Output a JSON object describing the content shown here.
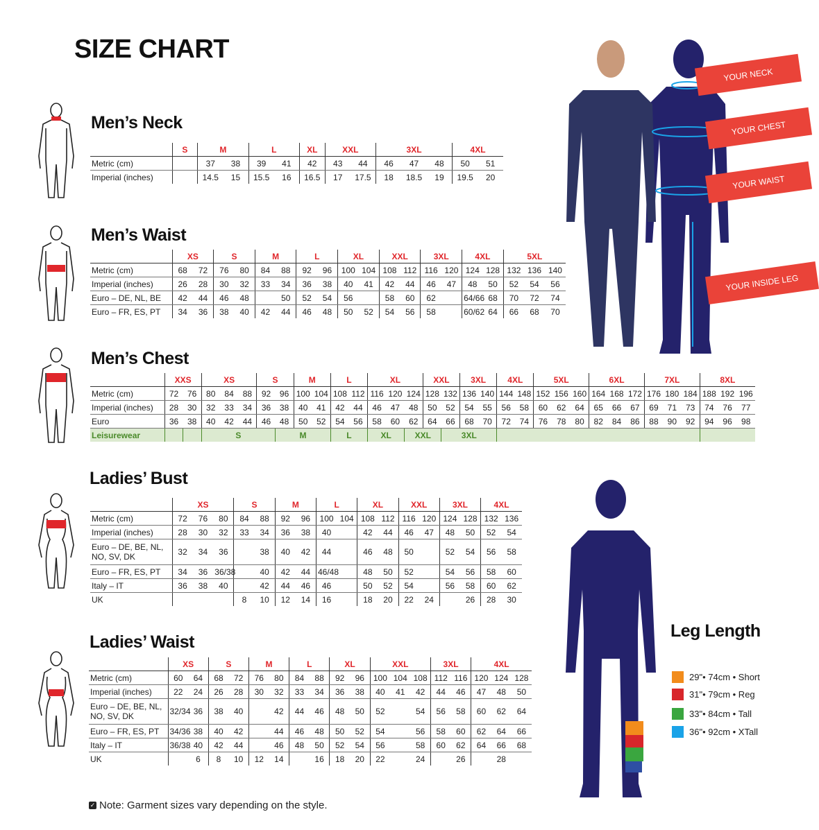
{
  "title": "SIZE CHART",
  "colors": {
    "size_header": "#e0262b",
    "leisure_bg": "#dcead0",
    "leisure_text": "#4a8a2a",
    "silhouette": "#24226b",
    "tag": "#ea4339"
  },
  "measure_tags": [
    "YOUR NECK",
    "YOUR CHEST",
    "YOUR WAIST",
    "YOUR INSIDE LEG"
  ],
  "tables": [
    {
      "title": "Men’s Neck",
      "groups": [
        {
          "label": "S",
          "span": 1
        },
        {
          "label": "M",
          "span": 2
        },
        {
          "label": "L",
          "span": 2
        },
        {
          "label": "XL",
          "span": 1
        },
        {
          "label": "XXL",
          "span": 2
        },
        {
          "label": "3XL",
          "span": 3
        },
        {
          "label": "4XL",
          "span": 2
        }
      ],
      "rows": [
        {
          "label": "Metric (cm)",
          "cells": [
            "",
            "37",
            "38",
            "39",
            "41",
            "42",
            "43",
            "44",
            "46",
            "47",
            "48",
            "50",
            "51"
          ]
        },
        {
          "label": "Imperial (inches)",
          "cells": [
            "",
            "14.5",
            "15",
            "15.5",
            "16",
            "16.5",
            "17",
            "17.5",
            "18",
            "18.5",
            "19",
            "19.5",
            "20"
          ]
        }
      ]
    },
    {
      "title": "Men’s Waist",
      "groups": [
        {
          "label": "XS",
          "span": 2
        },
        {
          "label": "S",
          "span": 2
        },
        {
          "label": "M",
          "span": 2
        },
        {
          "label": "L",
          "span": 2
        },
        {
          "label": "XL",
          "span": 2
        },
        {
          "label": "XXL",
          "span": 2
        },
        {
          "label": "3XL",
          "span": 2
        },
        {
          "label": "4XL",
          "span": 2
        },
        {
          "label": "5XL",
          "span": 3
        }
      ],
      "rows": [
        {
          "label": "Metric (cm)",
          "cells": [
            "68",
            "72",
            "76",
            "80",
            "84",
            "88",
            "92",
            "96",
            "100",
            "104",
            "108",
            "112",
            "116",
            "120",
            "124",
            "128",
            "132",
            "136",
            "140"
          ]
        },
        {
          "label": "Imperial (inches)",
          "cells": [
            "26",
            "28",
            "30",
            "32",
            "33",
            "34",
            "36",
            "38",
            "40",
            "41",
            "42",
            "44",
            "46",
            "47",
            "48",
            "50",
            "52",
            "54",
            "56"
          ]
        },
        {
          "label": "Euro – DE, NL, BE",
          "cells": [
            "42",
            "44",
            "46",
            "48",
            "",
            "50",
            "52",
            "54",
            "56",
            "",
            "58",
            "60",
            "62",
            "",
            "64/66",
            "68",
            "70",
            "72",
            "74"
          ]
        },
        {
          "label": "Euro – FR, ES, PT",
          "cells": [
            "34",
            "36",
            "38",
            "40",
            "42",
            "44",
            "46",
            "48",
            "50",
            "52",
            "54",
            "56",
            "58",
            "",
            "60/62",
            "64",
            "66",
            "68",
            "70"
          ]
        }
      ]
    },
    {
      "title": "Men’s Chest",
      "groups": [
        {
          "label": "XXS",
          "span": 2
        },
        {
          "label": "XS",
          "span": 3
        },
        {
          "label": "S",
          "span": 2
        },
        {
          "label": "M",
          "span": 2
        },
        {
          "label": "L",
          "span": 2
        },
        {
          "label": "XL",
          "span": 3
        },
        {
          "label": "XXL",
          "span": 2
        },
        {
          "label": "3XL",
          "span": 2
        },
        {
          "label": "4XL",
          "span": 2
        },
        {
          "label": "5XL",
          "span": 3
        },
        {
          "label": "6XL",
          "span": 3
        },
        {
          "label": "7XL",
          "span": 3
        },
        {
          "label": "8XL",
          "span": 3
        }
      ],
      "rows": [
        {
          "label": "Metric (cm)",
          "cells": [
            "72",
            "76",
            "80",
            "84",
            "88",
            "92",
            "96",
            "100",
            "104",
            "108",
            "112",
            "116",
            "120",
            "124",
            "128",
            "132",
            "136",
            "140",
            "144",
            "148",
            "152",
            "156",
            "160",
            "164",
            "168",
            "172",
            "176",
            "180",
            "184",
            "188",
            "192",
            "196"
          ]
        },
        {
          "label": "Imperial (inches)",
          "cells": [
            "28",
            "30",
            "32",
            "33",
            "34",
            "36",
            "38",
            "40",
            "41",
            "42",
            "44",
            "46",
            "47",
            "48",
            "50",
            "52",
            "54",
            "55",
            "56",
            "58",
            "60",
            "62",
            "64",
            "65",
            "66",
            "67",
            "69",
            "71",
            "73",
            "74",
            "76",
            "77"
          ]
        },
        {
          "label": "Euro",
          "cells": [
            "36",
            "38",
            "40",
            "42",
            "44",
            "46",
            "48",
            "50",
            "52",
            "54",
            "56",
            "58",
            "60",
            "62",
            "64",
            "66",
            "68",
            "70",
            "72",
            "74",
            "76",
            "78",
            "80",
            "82",
            "84",
            "86",
            "88",
            "90",
            "92",
            "94",
            "96",
            "98"
          ]
        }
      ],
      "leisurewear": {
        "label": "Leisurewear",
        "cells": [
          {
            "text": "",
            "span": 1
          },
          {
            "text": "",
            "span": 1
          },
          {
            "text": "S",
            "span": 4
          },
          {
            "text": "M",
            "span": 3
          },
          {
            "text": "L",
            "span": 2
          },
          {
            "text": "XL",
            "span": 2
          },
          {
            "text": "XXL",
            "span": 2
          },
          {
            "text": "3XL",
            "span": 3
          },
          {
            "text": "",
            "span": 11
          },
          {
            "text": "",
            "span": 3
          }
        ]
      }
    },
    {
      "title": "Ladies’ Bust",
      "groups": [
        {
          "label": "XS",
          "span": 3
        },
        {
          "label": "S",
          "span": 2
        },
        {
          "label": "M",
          "span": 2
        },
        {
          "label": "L",
          "span": 2
        },
        {
          "label": "XL",
          "span": 2
        },
        {
          "label": "XXL",
          "span": 2
        },
        {
          "label": "3XL",
          "span": 2
        },
        {
          "label": "4XL",
          "span": 2
        }
      ],
      "rows": [
        {
          "label": "Metric (cm)",
          "cells": [
            "72",
            "76",
            "80",
            "84",
            "88",
            "92",
            "96",
            "100",
            "104",
            "108",
            "112",
            "116",
            "120",
            "124",
            "128",
            "132",
            "136"
          ]
        },
        {
          "label": "Imperial (inches)",
          "cells": [
            "28",
            "30",
            "32",
            "33",
            "34",
            "36",
            "38",
            "40",
            "",
            "42",
            "44",
            "46",
            "47",
            "48",
            "50",
            "52",
            "54"
          ]
        },
        {
          "label": "Euro –  DE, BE, NL, NO, SV, DK",
          "cells": [
            "32",
            "34",
            "36",
            "",
            "38",
            "40",
            "42",
            "44",
            "",
            "46",
            "48",
            "50",
            "",
            "52",
            "54",
            "56",
            "58"
          ],
          "tall": true
        },
        {
          "label": "Euro – FR, ES, PT",
          "cells": [
            "34",
            "36",
            "36/38",
            "",
            "40",
            "42",
            "44",
            "46/48",
            "",
            "48",
            "50",
            "52",
            "",
            "54",
            "56",
            "58",
            "60"
          ]
        },
        {
          "label": "Italy – IT",
          "cells": [
            "36",
            "38",
            "40",
            "",
            "42",
            "44",
            "46",
            "46",
            "",
            "50",
            "52",
            "54",
            "",
            "56",
            "58",
            "60",
            "62"
          ]
        },
        {
          "label": "UK",
          "cells": [
            "",
            "",
            "",
            "8",
            "10",
            "12",
            "14",
            "16",
            "",
            "18",
            "20",
            "22",
            "24",
            "",
            "26",
            "28",
            "30"
          ]
        }
      ]
    },
    {
      "title": "Ladies’ Waist",
      "groups": [
        {
          "label": "XS",
          "span": 2
        },
        {
          "label": "S",
          "span": 2
        },
        {
          "label": "M",
          "span": 2
        },
        {
          "label": "L",
          "span": 2
        },
        {
          "label": "XL",
          "span": 2
        },
        {
          "label": "XXL",
          "span": 3
        },
        {
          "label": "3XL",
          "span": 2
        },
        {
          "label": "4XL",
          "span": 3
        }
      ],
      "rows": [
        {
          "label": "Metric (cm)",
          "cells": [
            "60",
            "64",
            "68",
            "72",
            "76",
            "80",
            "84",
            "88",
            "92",
            "96",
            "100",
            "104",
            "108",
            "112",
            "116",
            "120",
            "124",
            "128"
          ]
        },
        {
          "label": "Imperial (inches)",
          "cells": [
            "22",
            "24",
            "26",
            "28",
            "30",
            "32",
            "33",
            "34",
            "36",
            "38",
            "40",
            "41",
            "42",
            "44",
            "46",
            "47",
            "48",
            "50"
          ]
        },
        {
          "label": "Euro – DE, BE, NL, NO, SV, DK",
          "cells": [
            "32/34",
            "36",
            "38",
            "40",
            "",
            "42",
            "44",
            "46",
            "48",
            "50",
            "52",
            "",
            "54",
            "56",
            "58",
            "60",
            "62",
            "64"
          ],
          "tall": true
        },
        {
          "label": "Euro – FR, ES, PT",
          "cells": [
            "34/36",
            "38",
            "40",
            "42",
            "",
            "44",
            "46",
            "48",
            "50",
            "52",
            "54",
            "",
            "56",
            "58",
            "60",
            "62",
            "64",
            "66"
          ]
        },
        {
          "label": "Italy – IT",
          "cells": [
            "36/38",
            "40",
            "42",
            "44",
            "",
            "46",
            "48",
            "50",
            "52",
            "54",
            "56",
            "",
            "58",
            "60",
            "62",
            "64",
            "66",
            "68"
          ]
        },
        {
          "label": "UK",
          "cells": [
            "",
            "6",
            "8",
            "10",
            "12",
            "14",
            "",
            "16",
            "18",
            "20",
            "22",
            "",
            "24",
            "",
            "26",
            "",
            "28",
            ""
          ]
        }
      ]
    }
  ],
  "leg_length": {
    "title": "Leg Length",
    "items": [
      {
        "label": "29\"• 74cm • Short",
        "color": "#f28c1c"
      },
      {
        "label": "31\"• 79cm • Reg",
        "color": "#d8262b"
      },
      {
        "label": "33\"• 84cm • Tall",
        "color": "#3aa63f"
      },
      {
        "label": "36\"• 92cm • XTall",
        "color": "#1aa3e8"
      }
    ]
  },
  "note": "Note: Garment sizes vary depending on the style."
}
